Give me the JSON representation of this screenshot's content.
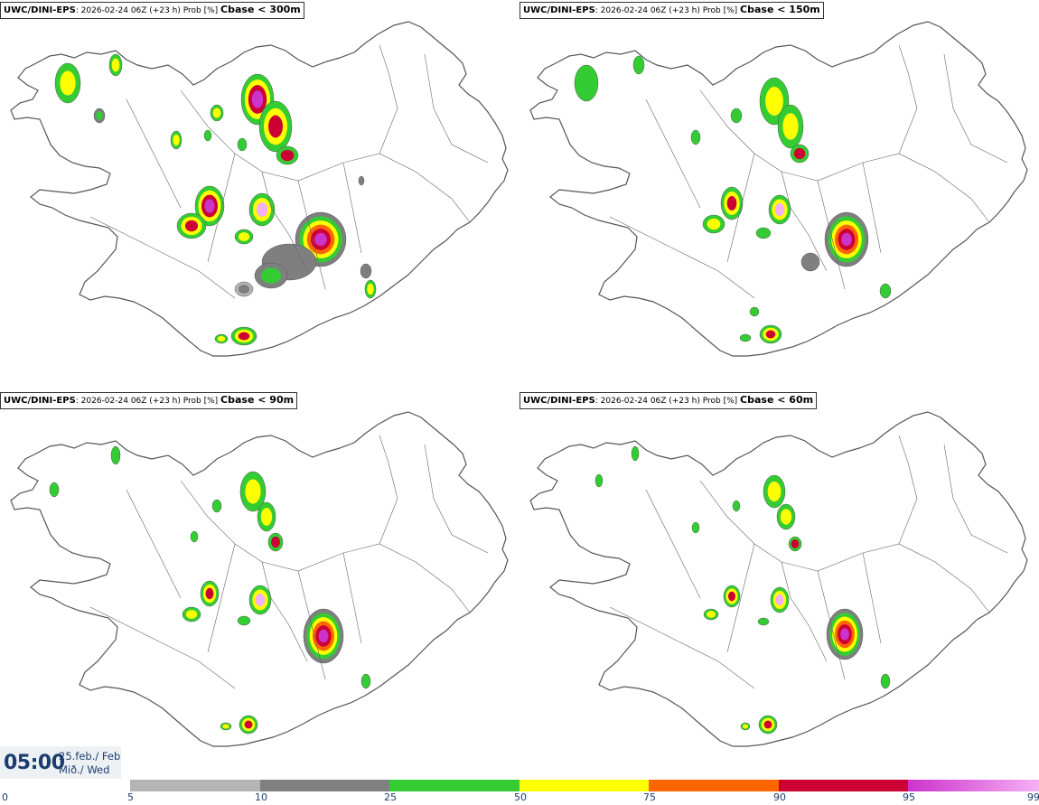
{
  "panels": [
    {
      "model": "UWC/DINI-EPS",
      "run": ": 2026-02-24 06Z (+23 h) Prob [%] ",
      "field": "Cbase < 300m"
    },
    {
      "model": "UWC/DINI-EPS",
      "run": ": 2026-02-24 06Z (+23 h) Prob [%] ",
      "field": "Cbase < 150m"
    },
    {
      "model": "UWC/DINI-EPS",
      "run": ": 2026-02-24 06Z (+23 h) Prob [%] ",
      "field": "Cbase < 90m"
    },
    {
      "model": "UWC/DINI-EPS",
      "run": ": 2026-02-24 06Z (+23 h) Prob [%] ",
      "field": "Cbase < 60m"
    }
  ],
  "valid_time": {
    "hour": "05:00",
    "date_line1": "25.feb./ Feb",
    "date_line2": "Mið./ Wed"
  },
  "colorbar": {
    "ticks": [
      "0",
      "5",
      "10",
      "25",
      "50",
      "75",
      "90",
      "95",
      "99"
    ],
    "colors": [
      "#ffffff",
      "#b4b4b4",
      "#7f7f7f",
      "#33cc33",
      "#ffff00",
      "#ff6600",
      "#cc0033",
      "#cc33cc",
      "#f5b0f5"
    ]
  }
}
